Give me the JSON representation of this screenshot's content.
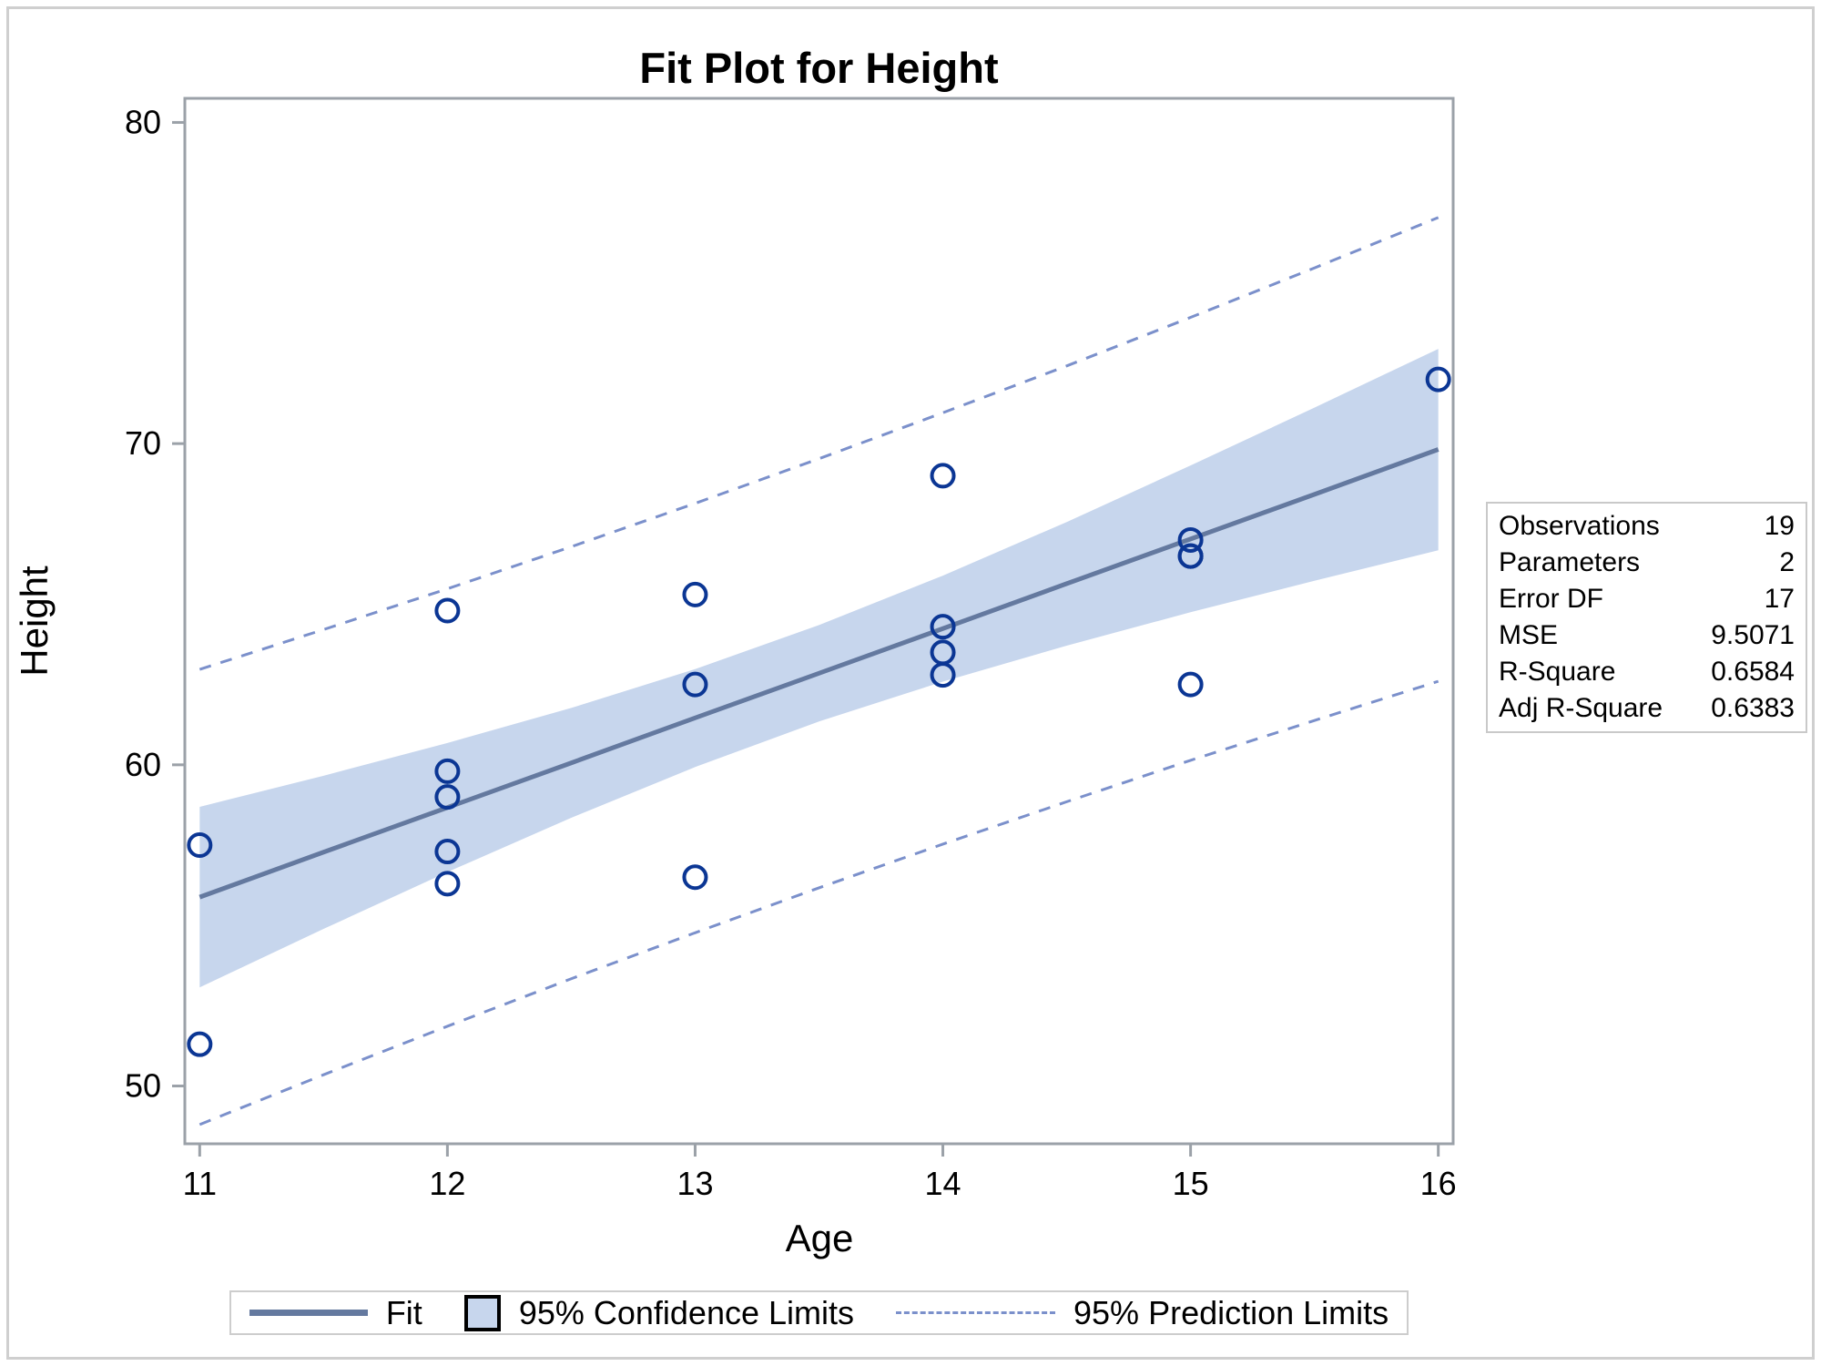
{
  "title": "Fit Plot for Height",
  "x_axis": {
    "label": "Age",
    "ticks": [
      11,
      12,
      13,
      14,
      15,
      16
    ]
  },
  "y_axis": {
    "label": "Height",
    "ticks": [
      50,
      60,
      70,
      80
    ]
  },
  "stats_box": {
    "rows": [
      {
        "label": "Observations",
        "value": "19"
      },
      {
        "label": "Parameters",
        "value": "2"
      },
      {
        "label": "Error DF",
        "value": "17"
      },
      {
        "label": "MSE",
        "value": "9.5071"
      },
      {
        "label": "R-Square",
        "value": "0.6584"
      },
      {
        "label": "Adj R-Square",
        "value": "0.6383"
      }
    ]
  },
  "legend": {
    "fit_label": "Fit",
    "confidence_label": "95% Confidence Limits",
    "prediction_label": "95% Prediction Limits"
  },
  "colors": {
    "fit_line": "#64799f",
    "confidence_band": "#c7d6ed",
    "prediction_line": "#7b90cb",
    "marker": "#0b3694",
    "axis": "#9ba1a8",
    "text": "#000000",
    "frame_border": "#cfcfcf"
  },
  "chart_data": {
    "type": "scatter",
    "title": "Fit Plot for Height",
    "xlabel": "Age",
    "ylabel": "Height",
    "xlim": [
      10.94,
      16.06
    ],
    "ylim": [
      48.2,
      80.75
    ],
    "x_ticks": [
      11,
      12,
      13,
      14,
      15,
      16
    ],
    "y_ticks": [
      50,
      60,
      70,
      80
    ],
    "grid": false,
    "legend_position": "bottom",
    "points": [
      [
        11,
        51.3
      ],
      [
        11,
        57.5
      ],
      [
        12,
        56.3
      ],
      [
        12,
        57.3
      ],
      [
        12,
        59.0
      ],
      [
        12,
        59.8
      ],
      [
        12,
        64.8
      ],
      [
        13,
        56.5
      ],
      [
        13,
        62.5
      ],
      [
        13,
        65.3
      ],
      [
        14,
        62.8
      ],
      [
        14,
        63.5
      ],
      [
        14,
        64.3
      ],
      [
        14,
        69.0
      ],
      [
        15,
        62.5
      ],
      [
        15,
        66.5
      ],
      [
        15,
        66.5
      ],
      [
        15,
        67.0
      ],
      [
        16,
        72.0
      ]
    ],
    "fit_equation": "Height = 25.22 + 2.787*Age",
    "sample_x": [
      11,
      11.5,
      12,
      12.5,
      13,
      13.5,
      14,
      14.5,
      15,
      15.5,
      16
    ],
    "fit_y": [
      55.88,
      57.28,
      58.67,
      60.06,
      61.46,
      62.85,
      64.24,
      65.64,
      67.03,
      68.42,
      69.82
    ],
    "ci_upper": [
      58.69,
      59.66,
      60.68,
      61.77,
      62.98,
      64.35,
      65.89,
      67.56,
      69.32,
      71.12,
      72.95
    ],
    "ci_lower": [
      53.07,
      54.89,
      56.66,
      58.35,
      59.93,
      61.35,
      62.59,
      63.71,
      64.75,
      65.73,
      66.68
    ],
    "pi_upper": [
      62.97,
      64.21,
      65.48,
      66.79,
      68.14,
      69.53,
      70.96,
      72.42,
      73.93,
      75.47,
      77.04
    ],
    "pi_lower": [
      48.8,
      50.35,
      51.86,
      53.34,
      54.77,
      56.17,
      57.53,
      58.85,
      60.14,
      61.38,
      62.6
    ]
  }
}
